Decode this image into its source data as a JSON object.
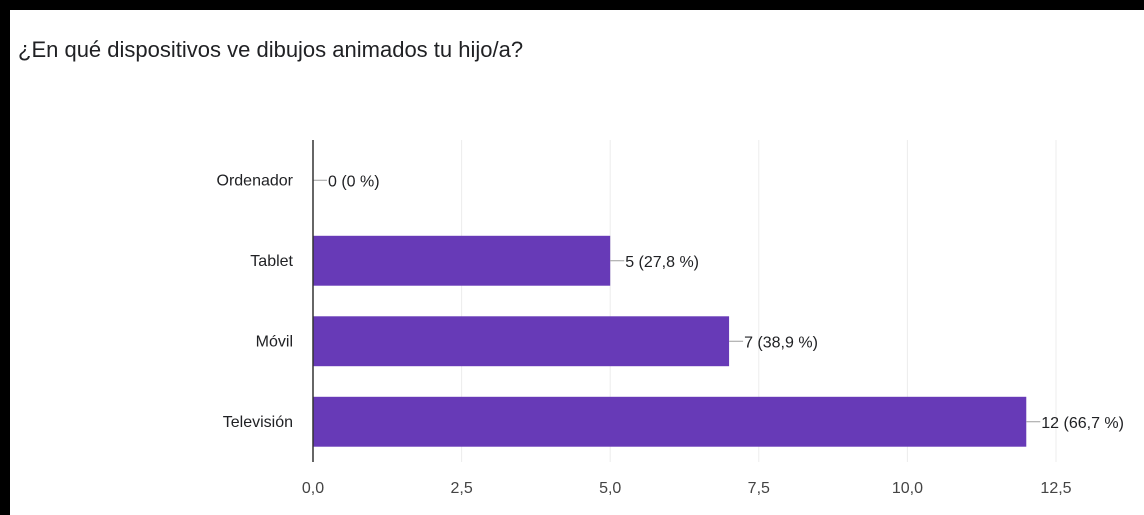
{
  "colors": {
    "bar": "#673ab7",
    "grid": "#ececec",
    "axis": "#333333",
    "leader": "#9e9e9e"
  },
  "chart_data": {
    "type": "bar",
    "orientation": "horizontal",
    "title": "¿En qué dispositivos ve dibujos animados tu hijo/a?",
    "categories": [
      "Ordenador",
      "Tablet",
      "Móvil",
      "Televisión"
    ],
    "values": [
      0,
      5,
      7,
      12
    ],
    "data_labels": [
      "0 (0 %)",
      "5 (27,8 %)",
      "7 (38,9 %)",
      "12 (66,7 %)"
    ],
    "xlim": [
      0,
      12.5
    ],
    "xticks": [
      0,
      2.5,
      5,
      7.5,
      10,
      12.5
    ],
    "xtick_labels": [
      "0,0",
      "2,5",
      "5,0",
      "7,5",
      "10,0",
      "12,5"
    ],
    "grid": true,
    "legend": false
  }
}
